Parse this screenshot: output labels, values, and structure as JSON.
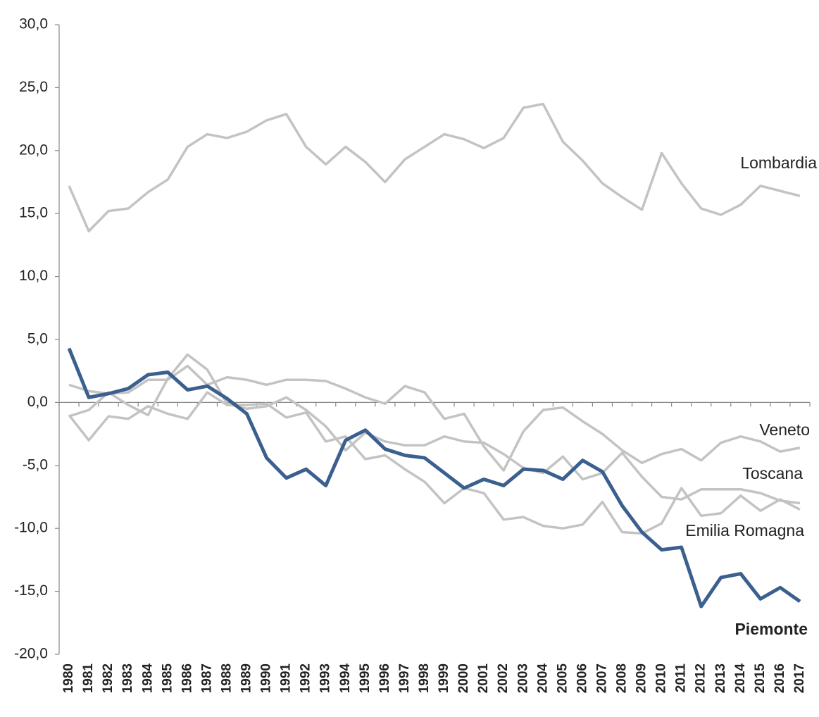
{
  "chart_data": {
    "type": "line",
    "categories": [
      "1980",
      "1981",
      "1982",
      "1983",
      "1984",
      "1985",
      "1986",
      "1987",
      "1988",
      "1989",
      "1990",
      "1991",
      "1992",
      "1993",
      "1994",
      "1995",
      "1996",
      "1997",
      "1998",
      "1999",
      "2000",
      "2001",
      "2002",
      "2003",
      "2004",
      "2005",
      "2006",
      "2007",
      "2008",
      "2009",
      "2010",
      "2011",
      "2012",
      "2013",
      "2014",
      "2015",
      "2016",
      "2017"
    ],
    "ylim": [
      -20,
      30
    ],
    "yticks": [
      {
        "value": -20,
        "label": "-20,0"
      },
      {
        "value": -15,
        "label": "-15,0"
      },
      {
        "value": -10,
        "label": "-10,0"
      },
      {
        "value": -5,
        "label": "-5,0"
      },
      {
        "value": 0,
        "label": "0,0"
      },
      {
        "value": 5,
        "label": "5,0"
      },
      {
        "value": 10,
        "label": "10,0"
      },
      {
        "value": 15,
        "label": "15,0"
      },
      {
        "value": 20,
        "label": "20,0"
      },
      {
        "value": 25,
        "label": "25,0"
      },
      {
        "value": 30,
        "label": "30,0"
      }
    ],
    "series": [
      {
        "name": "Lombardia",
        "color": "#c3c3c3",
        "values": [
          17.2,
          13.6,
          15.2,
          15.4,
          16.7,
          17.7,
          20.3,
          21.3,
          21.0,
          21.5,
          22.4,
          22.9,
          20.3,
          18.9,
          20.3,
          19.1,
          17.5,
          19.3,
          20.3,
          21.3,
          20.9,
          20.2,
          21.0,
          23.4,
          23.7,
          20.7,
          19.2,
          17.4,
          16.3,
          15.3,
          19.8,
          17.4,
          15.4,
          14.9,
          15.7,
          17.2,
          16.8,
          16.4
        ]
      },
      {
        "name": "Veneto",
        "color": "#c3c3c3",
        "values": [
          1.4,
          0.9,
          0.7,
          0.8,
          1.8,
          1.8,
          2.9,
          1.4,
          2.0,
          1.8,
          1.4,
          1.8,
          1.8,
          1.7,
          1.1,
          0.4,
          -0.1,
          1.3,
          0.8,
          -1.3,
          -0.9,
          -3.5,
          -5.4,
          -2.3,
          -0.6,
          -0.4,
          -1.5,
          -2.5,
          -3.8,
          -4.8,
          -4.1,
          -3.7,
          -4.6,
          -3.2,
          -2.7,
          -3.1,
          -3.9,
          -3.6
        ]
      },
      {
        "name": "Toscana",
        "color": "#c3c3c3",
        "values": [
          -1.1,
          -0.6,
          0.8,
          -0.2,
          -1.0,
          1.9,
          3.8,
          2.6,
          -0.1,
          -0.5,
          -0.3,
          0.4,
          -0.6,
          -1.9,
          -3.8,
          -2.4,
          -3.1,
          -3.4,
          -3.4,
          -2.7,
          -3.1,
          -3.2,
          -4.1,
          -5.2,
          -5.6,
          -4.3,
          -6.1,
          -5.6,
          -4.0,
          -5.9,
          -7.5,
          -7.7,
          -6.9,
          -6.9,
          -6.9,
          -7.2,
          -7.8,
          -8.0
        ]
      },
      {
        "name": "Emilia Romagna",
        "color": "#c3c3c3",
        "values": [
          -1.0,
          -3.0,
          -1.1,
          -1.3,
          -0.3,
          -0.9,
          -1.3,
          0.8,
          -0.2,
          -0.2,
          -0.1,
          -1.2,
          -0.8,
          -3.1,
          -2.7,
          -4.5,
          -4.2,
          -5.3,
          -6.3,
          -8.0,
          -6.8,
          -7.2,
          -9.3,
          -9.1,
          -9.8,
          -10.0,
          -9.7,
          -7.9,
          -10.3,
          -10.4,
          -9.6,
          -6.8,
          -9.0,
          -8.8,
          -7.4,
          -8.6,
          -7.7,
          -8.5
        ]
      },
      {
        "name": "Piemonte",
        "color": "#3b5f8e",
        "values": [
          4.3,
          0.4,
          0.7,
          1.1,
          2.2,
          2.4,
          1.0,
          1.3,
          0.3,
          -0.9,
          -4.4,
          -6.0,
          -5.3,
          -6.6,
          -3.0,
          -2.2,
          -3.7,
          -4.2,
          -4.4,
          -5.6,
          -6.8,
          -6.1,
          -6.6,
          -5.3,
          -5.4,
          -6.1,
          -4.6,
          -5.5,
          -8.2,
          -10.3,
          -11.7,
          -11.5,
          -16.2,
          -13.9,
          -13.6,
          -15.6,
          -14.7,
          -15.8
        ]
      }
    ]
  }
}
